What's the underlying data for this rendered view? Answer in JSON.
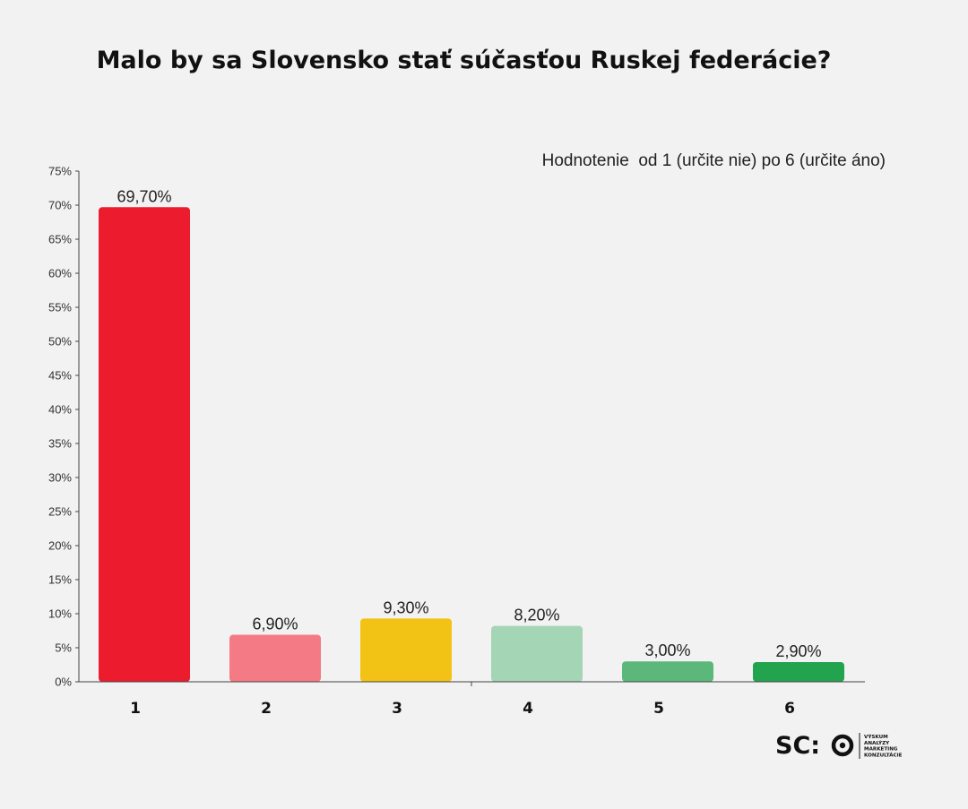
{
  "chart_data": {
    "type": "bar",
    "title": "Malo by sa Slovensko stať súčasťou Ruskej federácie?",
    "subtitle": "Hodnotenie  od 1 (určite nie) po 6 (určite áno)",
    "categories": [
      "1",
      "2",
      "3",
      "4",
      "5",
      "6"
    ],
    "values": [
      69.7,
      6.9,
      9.3,
      8.2,
      3.0,
      2.9
    ],
    "data_labels": [
      "69,70%",
      "6,90%",
      "9,30%",
      "8,20%",
      "3,00%",
      "2,90%"
    ],
    "colors": [
      "#ed1b2e",
      "#f47b85",
      "#f2c314",
      "#a4d5b4",
      "#5cb87a",
      "#22a44f"
    ],
    "y_ticks": [
      "0%",
      "5%",
      "10%",
      "15%",
      "20%",
      "25%",
      "30%",
      "35%",
      "40%",
      "45%",
      "50%",
      "55%",
      "60%",
      "65%",
      "70%",
      "75%"
    ],
    "ylim": [
      0,
      75
    ],
    "grid": false,
    "legend": "none"
  },
  "logo": {
    "brand": "SC:O",
    "taglines": [
      "VÝSKUM",
      "ANALÝZY",
      "MARKETING",
      "KONZULTÁCIE"
    ]
  }
}
